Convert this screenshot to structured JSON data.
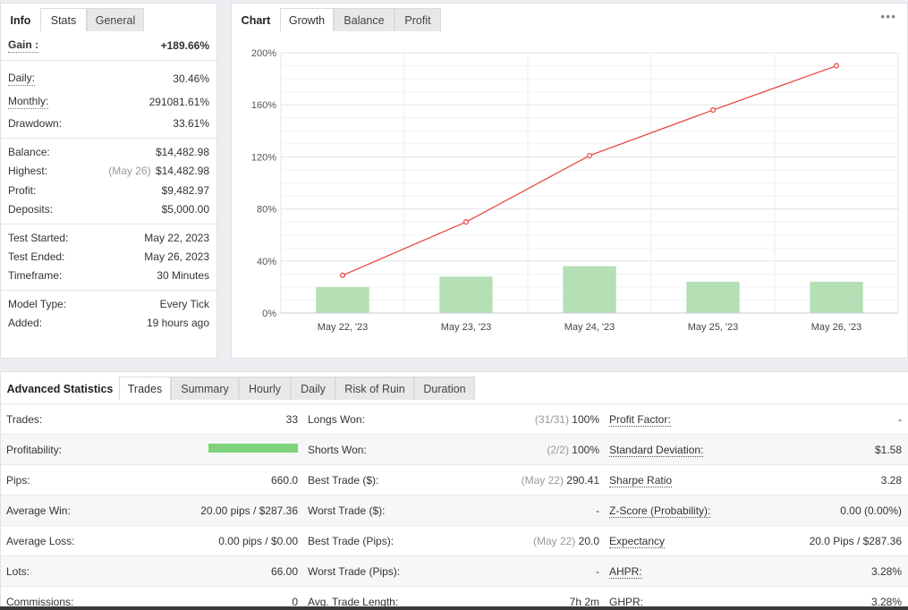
{
  "left_panel": {
    "tabs": [
      "Info",
      "Stats",
      "General"
    ],
    "active_tab": "Stats",
    "gain": {
      "label": "Gain :",
      "value": "+189.66%"
    },
    "daily": {
      "label": "Daily:",
      "value": "30.46%"
    },
    "monthly": {
      "label": "Monthly:",
      "value": "291081.61%"
    },
    "drawdown": {
      "label": "Drawdown:",
      "value": "33.61%"
    },
    "balance": {
      "label": "Balance:",
      "value": "$14,482.98"
    },
    "highest": {
      "label": "Highest:",
      "note": "(May 26)",
      "value": "$14,482.98"
    },
    "profit": {
      "label": "Profit:",
      "value": "$9,482.97"
    },
    "deposits": {
      "label": "Deposits:",
      "value": "$5,000.00"
    },
    "test_started": {
      "label": "Test Started:",
      "value": "May 22, 2023"
    },
    "test_ended": {
      "label": "Test Ended:",
      "value": "May 26, 2023"
    },
    "timeframe": {
      "label": "Timeframe:",
      "value": "30 Minutes"
    },
    "model_type": {
      "label": "Model Type:",
      "value": "Every Tick"
    },
    "added": {
      "label": "Added:",
      "value": "19 hours ago"
    }
  },
  "chart_panel": {
    "tabs": [
      "Chart",
      "Growth",
      "Balance",
      "Profit"
    ],
    "active_tab": "Growth",
    "menu_icon": "ellipsis-icon"
  },
  "chart_data": {
    "type": "line",
    "categories": [
      "May 22, '23",
      "May 23, '23",
      "May 24, '23",
      "May 25, '23",
      "May 26, '23"
    ],
    "series": [
      {
        "type": "line",
        "color": "#e8403a",
        "values": [
          29,
          70,
          121,
          156,
          190
        ]
      },
      {
        "type": "bar",
        "color": "#b5dfb5",
        "values": [
          20,
          28,
          36,
          24,
          24
        ]
      }
    ],
    "yticks": [
      "0%",
      "40%",
      "80%",
      "120%",
      "160%",
      "200%"
    ],
    "ylim": [
      0,
      200
    ],
    "grid": true
  },
  "advanced": {
    "tabs": [
      "Advanced Statistics",
      "Trades",
      "Summary",
      "Hourly",
      "Daily",
      "Risk of Ruin",
      "Duration"
    ],
    "active_tab": "Trades",
    "rows": [
      {
        "c1": "Trades:",
        "v1": "33",
        "c2": "Longs Won:",
        "n2": "(31/31)",
        "v2": "100%",
        "c3": "Profit Factor:",
        "v3": "-"
      },
      {
        "c1": "Profitability:",
        "progress": 1.0,
        "c2": "Shorts Won:",
        "n2": "(2/2)",
        "v2": "100%",
        "c3": "Standard Deviation:",
        "v3": "$1.58"
      },
      {
        "c1": "Pips:",
        "v1": "660.0",
        "c2": "Best Trade ($):",
        "n2": "(May 22)",
        "v2": "290.41",
        "c3": "Sharpe Ratio",
        "v3": "3.28"
      },
      {
        "c1": "Average Win:",
        "v1": "20.00 pips / $287.36",
        "c2": "Worst Trade ($):",
        "v2": "-",
        "c3": "Z-Score (Probability):",
        "v3": "0.00 (0.00%)"
      },
      {
        "c1": "Average Loss:",
        "v1": "0.00 pips / $0.00",
        "c2": "Best Trade (Pips):",
        "n2": "(May 22)",
        "v2": "20.0",
        "c3": "Expectancy",
        "v3": "20.0 Pips / $287.36"
      },
      {
        "c1": "Lots:",
        "v1": "66.00",
        "c2": "Worst Trade (Pips):",
        "v2": "-",
        "c3": "AHPR:",
        "v3": "3.28%"
      },
      {
        "c1": "Commissions:",
        "v1": "0",
        "c2": "Avg. Trade Length:",
        "v2": "7h 2m",
        "c3": "GHPR:",
        "v3": "3.28%"
      }
    ]
  }
}
